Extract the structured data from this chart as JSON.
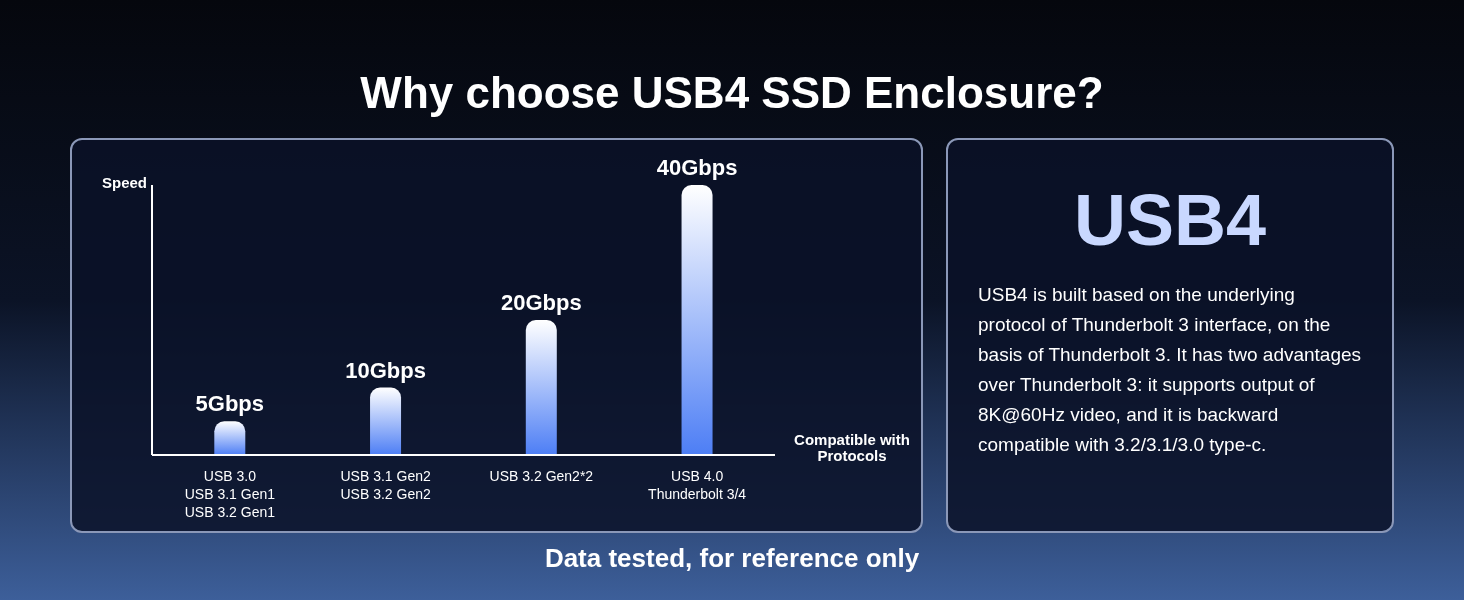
{
  "chart_data": [
    {
      "type": "bar",
      "title": "Why choose USB4 SSD Enclosure?",
      "ylabel": "Speed",
      "xlabel": "Compatible with Protocols",
      "categories": [
        "USB 3.0\nUSB 3.1 Gen1\nUSB 3.2 Gen1",
        "USB 3.1 Gen2\nUSB 3.2 Gen2",
        "USB 3.2 Gen2*2",
        "USB 4.0\nThunderbolt 3/4"
      ],
      "values": [
        5,
        10,
        20,
        40
      ],
      "value_labels": [
        "5Gbps",
        "10Gbps",
        "20Gbps",
        "40Gbps"
      ],
      "color": "#4d7ef5",
      "annotations": [
        "Data tested, for reference only"
      ]
    },
    {
      "type": "other",
      "title": "USB4",
      "annotations": [
        "USB4 is built based on the underlying protocol of Thunderbolt 3 interface, on the basis of Thunderbolt 3. It has two advantages over Thunderbolt 3: it supports output of 8K@60Hz video, and it is backward compatible with 3.2/3.1/3.0 type-c."
      ]
    }
  ]
}
